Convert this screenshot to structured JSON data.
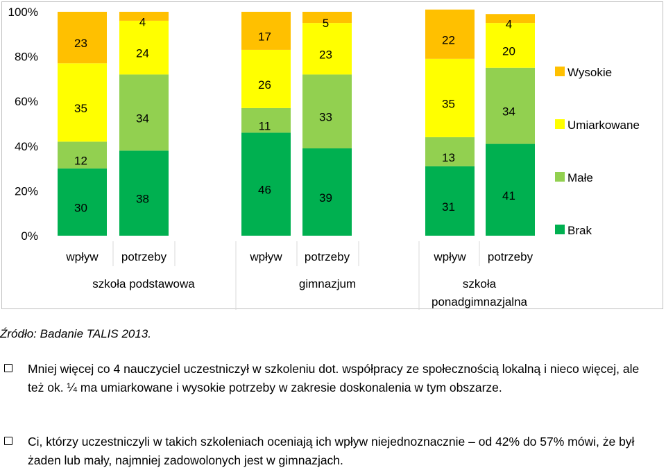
{
  "chart_data": {
    "type": "bar",
    "stacked": true,
    "y_tick_labels": [
      "0%",
      "20%",
      "40%",
      "60%",
      "80%",
      "100%"
    ],
    "ylim": [
      0,
      100
    ],
    "grid": true,
    "legend_position": "right",
    "groups": [
      {
        "label": "szkoła podstawowa",
        "label_lines": [
          "szkoła podstawowa"
        ]
      },
      {
        "label": "gimnazjum",
        "label_lines": [
          "gimnazjum"
        ]
      },
      {
        "label": "szkoła ponadgimnazjalna",
        "label_lines": [
          "szkoła",
          "ponadgimnazjalna"
        ]
      }
    ],
    "categories": [
      "wpływ",
      "potrzeby",
      "wpływ",
      "potrzeby",
      "wpływ",
      "potrzeby"
    ],
    "series": [
      {
        "name": "Brak",
        "color": "#00b050",
        "values": [
          30,
          38,
          46,
          39,
          31,
          41
        ]
      },
      {
        "name": "Małe",
        "color": "#92d050",
        "values": [
          12,
          34,
          11,
          33,
          13,
          34
        ]
      },
      {
        "name": "Umiarkowane",
        "color": "#ffff00",
        "values": [
          35,
          24,
          26,
          23,
          35,
          20
        ]
      },
      {
        "name": "Wysokie",
        "color": "#ffc000",
        "values": [
          23,
          4,
          17,
          5,
          22,
          4
        ]
      }
    ],
    "legend_order": [
      "Wysokie",
      "Umiarkowane",
      "Małe",
      "Brak"
    ]
  },
  "source": "Źródło: Badanie TALIS 2013.",
  "bullets": [
    "Mniej więcej co 4 nauczyciel uczestniczył w szkoleniu dot. współpracy ze społecznością lokalną i nieco więcej, ale też ok. ¼ ma umiarkowane i wysokie potrzeby w zakresie doskonalenia w tym obszarze.",
    "Ci, którzy uczestniczyli w takich szkoleniach oceniają ich wpływ niejednoznacznie – od 42% do 57% mówi, że był żaden lub mały, najmniej zadowolonych jest w gimnazjach."
  ]
}
